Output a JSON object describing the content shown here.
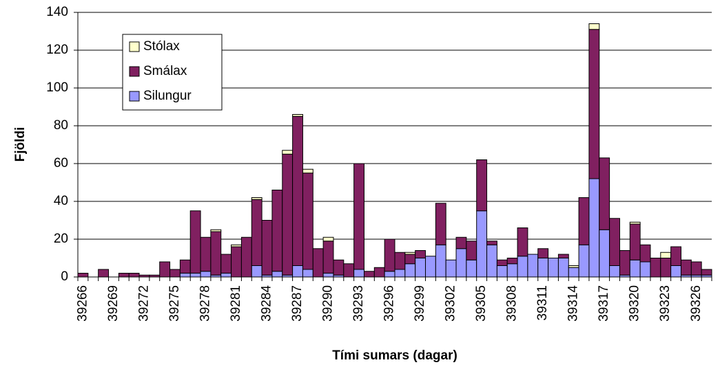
{
  "chart_data": {
    "type": "stacked_bar",
    "xlabel": "Tími sumars (dagar)",
    "ylabel": "Fjöldi",
    "categories": [
      39266,
      null,
      null,
      39269,
      null,
      null,
      39272,
      null,
      null,
      39275,
      null,
      null,
      39278,
      null,
      null,
      39281,
      null,
      null,
      39284,
      null,
      null,
      39287,
      null,
      null,
      39290,
      null,
      null,
      39293,
      null,
      null,
      39296,
      null,
      null,
      39299,
      null,
      null,
      39302,
      null,
      null,
      39305,
      null,
      null,
      39308,
      null,
      null,
      39311,
      null,
      null,
      39314,
      null,
      null,
      39317,
      null,
      null,
      39320,
      null,
      null,
      39323,
      null,
      null,
      39326,
      null
    ],
    "series": [
      {
        "name": "Silungur",
        "color": "#9999ff",
        "values": [
          0,
          0,
          0,
          0,
          0,
          0,
          0,
          0,
          0,
          0,
          2,
          2,
          3,
          1,
          2,
          0,
          0,
          6,
          1,
          3,
          1,
          6,
          4,
          0,
          2,
          1,
          0,
          4,
          0,
          0,
          3,
          4,
          7,
          10,
          11,
          17,
          9,
          15,
          9,
          35,
          17,
          6,
          7,
          11,
          12,
          10,
          10,
          10,
          5,
          17,
          52,
          25,
          6,
          1,
          9,
          8,
          0,
          0,
          6,
          1,
          1,
          1
        ]
      },
      {
        "name": "Smálax",
        "color": "#802060",
        "values": [
          2,
          0,
          4,
          0,
          2,
          2,
          1,
          1,
          8,
          4,
          7,
          33,
          18,
          23,
          10,
          16,
          21,
          35,
          29,
          43,
          64,
          79,
          51,
          15,
          17,
          8,
          7,
          56,
          3,
          5,
          17,
          9,
          5,
          4,
          0,
          22,
          0,
          6,
          10,
          27,
          2,
          3,
          3,
          15,
          0,
          5,
          0,
          2,
          0,
          25,
          79,
          38,
          25,
          13,
          19,
          9,
          10,
          10,
          10,
          8,
          7,
          3
        ]
      },
      {
        "name": "Stólax",
        "color": "#ffffcc",
        "values": [
          0,
          0,
          0,
          0,
          0,
          0,
          0,
          0,
          0,
          0,
          0,
          0,
          0,
          1,
          0,
          1,
          0,
          1,
          0,
          0,
          2,
          1,
          2,
          0,
          2,
          0,
          0,
          0,
          0,
          0,
          0,
          0,
          1,
          0,
          0,
          0,
          0,
          0,
          0,
          0,
          0,
          0,
          0,
          0,
          0,
          0,
          0,
          0,
          1,
          0,
          3,
          0,
          0,
          0,
          1,
          0,
          0,
          3,
          0,
          0,
          0,
          0
        ]
      }
    ],
    "ylim": [
      0,
      140
    ],
    "yticks": [
      0,
      20,
      40,
      60,
      80,
      100,
      120,
      140
    ],
    "grid": true,
    "legend": "upper left"
  }
}
